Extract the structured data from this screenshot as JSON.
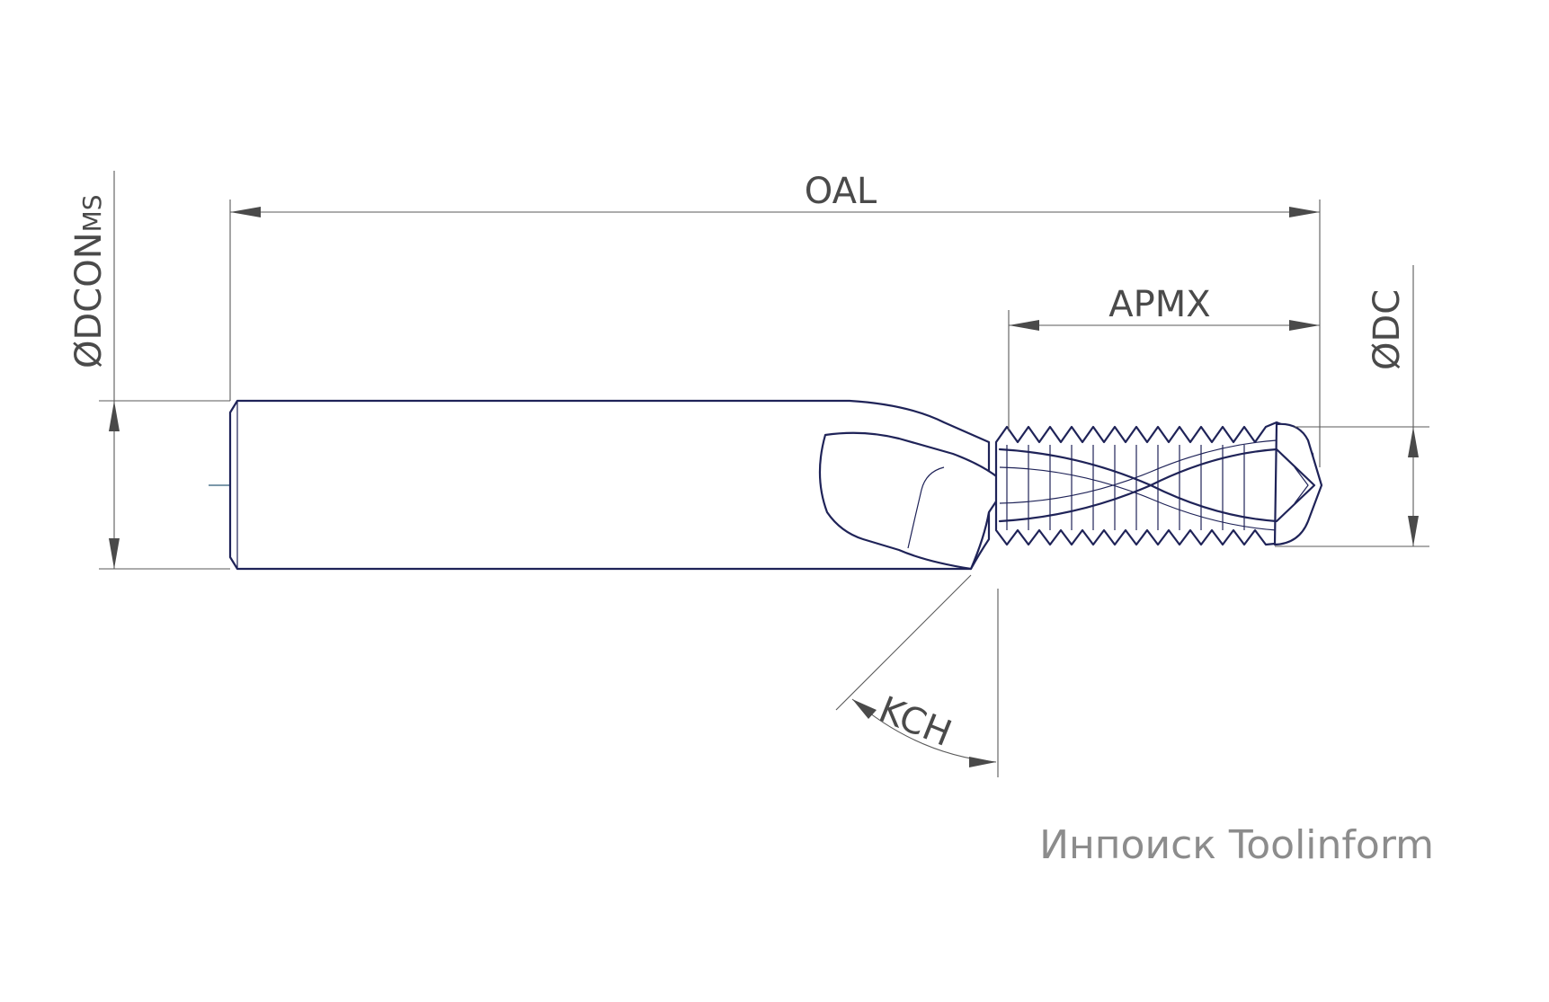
{
  "labels": {
    "oal": "OAL",
    "apmx": "APMX",
    "dc": "ØDC",
    "dcon": "ØDCON",
    "dcon_sub": "MS",
    "kch": "KCH"
  },
  "watermark": "Инпоиск Toolinform",
  "colors": {
    "outline": "#1f2358",
    "dimension": "#5a5a5a",
    "text": "#4a4a4a",
    "axis": "#2c5a78",
    "watermark": "#8c8c8c"
  }
}
